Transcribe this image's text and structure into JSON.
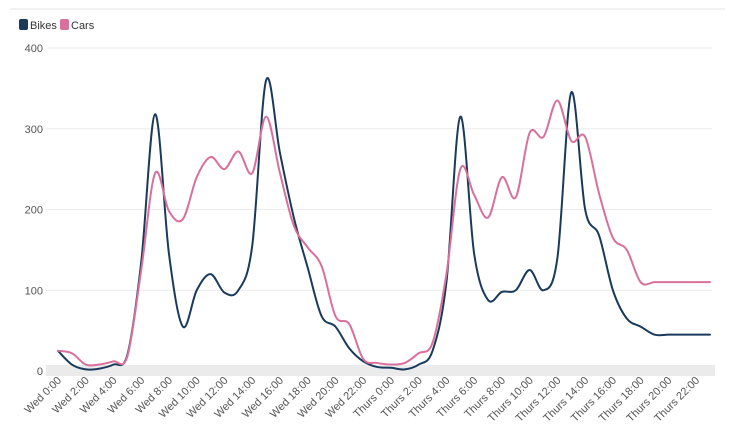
{
  "chart_data": {
    "type": "line",
    "title": "",
    "xlabel": "",
    "ylabel": "",
    "ylim": [
      0,
      400
    ],
    "yticks": [
      0,
      100,
      200,
      300,
      400
    ],
    "legend_position": "top-left",
    "categories": [
      "Wed 0:00",
      "Wed 1:00",
      "Wed 2:00",
      "Wed 3:00",
      "Wed 4:00",
      "Wed 5:00",
      "Wed 6:00",
      "Wed 7:00",
      "Wed 8:00",
      "Wed 9:00",
      "Wed 10:00",
      "Wed 11:00",
      "Wed 12:00",
      "Wed 13:00",
      "Wed 14:00",
      "Wed 15:00",
      "Wed 16:00",
      "Wed 17:00",
      "Wed 18:00",
      "Wed 19:00",
      "Wed 20:00",
      "Wed 21:00",
      "Wed 22:00",
      "Wed 23:00",
      "Thurs 0:00",
      "Thurs 1:00",
      "Thurs 2:00",
      "Thurs 3:00",
      "Thurs 4:00",
      "Thurs 5:00",
      "Thurs 6:00",
      "Thurs 7:00",
      "Thurs 8:00",
      "Thurs 9:00",
      "Thurs 10:00",
      "Thurs 11:00",
      "Thurs 12:00",
      "Thurs 13:00",
      "Thurs 14:00",
      "Thurs 15:00",
      "Thurs 16:00",
      "Thurs 17:00",
      "Thurs 18:00",
      "Thurs 19:00",
      "Thurs 20:00",
      "Thurs 21:00",
      "Thurs 22:00",
      "Thurs 23:00"
    ],
    "tick_labels": [
      "Wed 0:00",
      "Wed 2:00",
      "Wed 4:00",
      "Wed 6:00",
      "Wed 8:00",
      "Wed 10:00",
      "Wed 12:00",
      "Wed 14:00",
      "Wed 16:00",
      "Wed 18:00",
      "Wed 20:00",
      "Wed 22:00",
      "Thurs 0:00",
      "Thurs 2:00",
      "Thurs 4:00",
      "Thurs 6:00",
      "Thurs 8:00",
      "Thurs 10:00",
      "Thurs 12:00",
      "Thurs 14:00",
      "Thurs 16:00",
      "Thurs 18:00",
      "Thurs 20:00",
      "Thurs 22:00"
    ],
    "series": [
      {
        "name": "Bikes",
        "color": "#1a3a5c",
        "values": [
          25,
          8,
          2,
          3,
          8,
          20,
          135,
          318,
          145,
          55,
          100,
          120,
          97,
          100,
          155,
          360,
          270,
          190,
          128,
          68,
          55,
          28,
          12,
          5,
          4,
          2,
          8,
          25,
          110,
          315,
          145,
          88,
          98,
          100,
          125,
          100,
          140,
          345,
          200,
          168,
          100,
          65,
          55,
          45,
          45,
          45,
          45,
          45
        ]
      },
      {
        "name": "Cars",
        "color": "#d9709c",
        "values": [
          25,
          22,
          8,
          8,
          12,
          18,
          125,
          245,
          198,
          188,
          240,
          265,
          250,
          272,
          245,
          315,
          245,
          180,
          153,
          130,
          68,
          58,
          15,
          10,
          8,
          10,
          22,
          35,
          120,
          250,
          218,
          190,
          240,
          215,
          295,
          290,
          335,
          285,
          290,
          220,
          165,
          150,
          110,
          110,
          110,
          110,
          110,
          110
        ]
      }
    ]
  }
}
